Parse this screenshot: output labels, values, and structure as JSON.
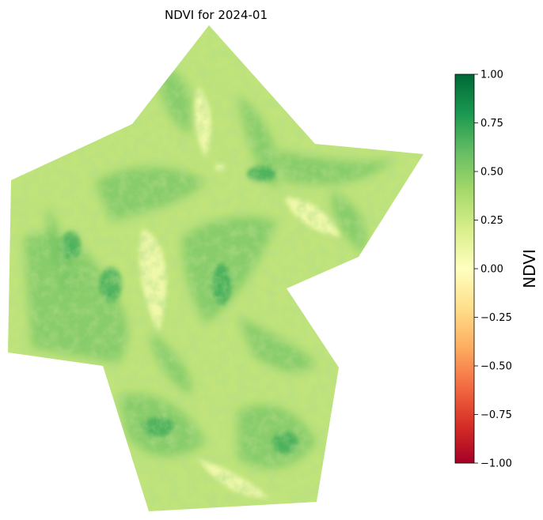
{
  "title": "NDVI for 2024-01",
  "colorbar": {
    "label": "NDVI",
    "min": -1.0,
    "max": 1.0,
    "ticks": [
      {
        "value": 1.0,
        "label": "1.00"
      },
      {
        "value": 0.75,
        "label": "0.75"
      },
      {
        "value": 0.5,
        "label": "0.50"
      },
      {
        "value": 0.25,
        "label": "0.25"
      },
      {
        "value": 0.0,
        "label": "0.00"
      },
      {
        "value": -0.25,
        "label": "−0.25"
      },
      {
        "value": -0.5,
        "label": "−0.50"
      },
      {
        "value": -0.75,
        "label": "−0.75"
      },
      {
        "value": -1.0,
        "label": "−1.00"
      }
    ],
    "colormap": "RdYlGn",
    "colormap_stops": [
      "#a50026",
      "#d73027",
      "#f46d43",
      "#fdae61",
      "#fee08b",
      "#ffffbf",
      "#d9ef8b",
      "#a6d96a",
      "#66bd63",
      "#1a9850",
      "#006837"
    ]
  },
  "map": {
    "background_ndvi": 0.3,
    "vegetation_bands_ndvi": 0.55,
    "dense_spot_ndvi": 0.7,
    "bright_patch_ndvi": 0.05
  }
}
